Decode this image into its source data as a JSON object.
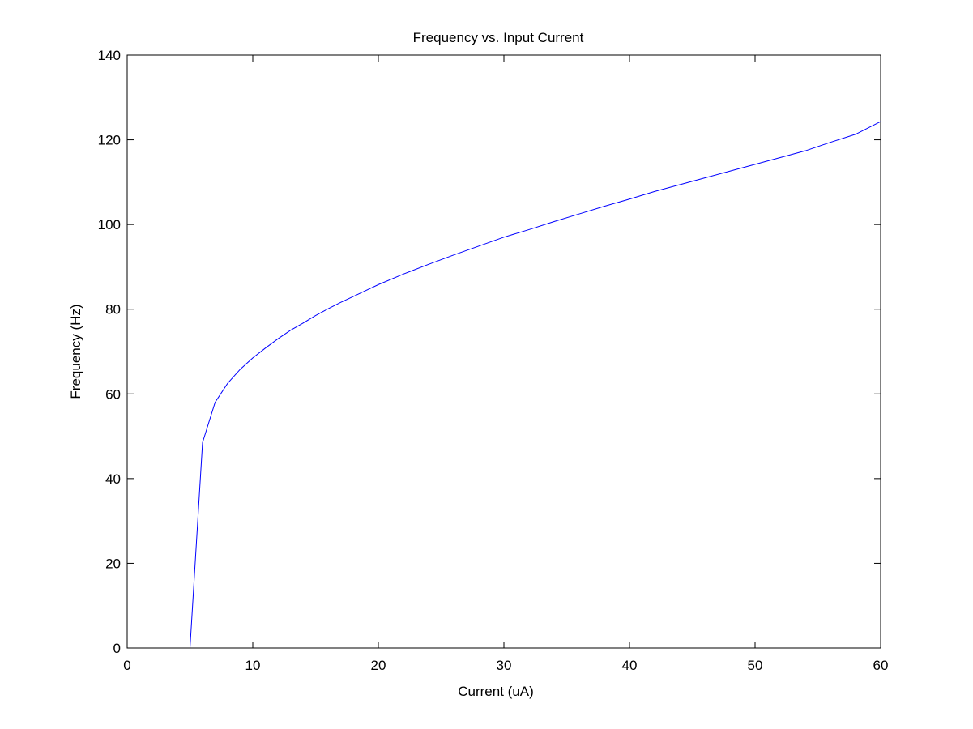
{
  "chart_data": {
    "type": "line",
    "title": "Frequency vs. Input Current",
    "xlabel": "Current (uA)",
    "ylabel": "Frequency (Hz)",
    "xlim": [
      0,
      60
    ],
    "ylim": [
      0,
      140
    ],
    "xticks": [
      0,
      10,
      20,
      30,
      40,
      50,
      60
    ],
    "yticks": [
      0,
      20,
      40,
      60,
      80,
      100,
      120,
      140
    ],
    "grid": false,
    "series": [
      {
        "color": "#0000ff",
        "x": [
          5,
          6,
          7,
          8,
          9,
          10,
          11,
          12,
          13,
          14,
          15,
          16,
          17,
          18,
          19,
          20,
          22,
          24,
          26,
          28,
          30,
          32,
          34,
          36,
          38,
          40,
          42,
          44,
          46,
          48,
          50,
          52,
          54,
          56,
          58,
          60
        ],
        "y": [
          0,
          48.5,
          58,
          62.5,
          65.8,
          68.5,
          70.8,
          73,
          75,
          76.7,
          78.5,
          80.1,
          81.6,
          83,
          84.4,
          85.8,
          88.3,
          90.6,
          92.8,
          94.9,
          97,
          98.8,
          100.7,
          102.5,
          104.3,
          106,
          107.8,
          109.4,
          111,
          112.6,
          114.2,
          115.8,
          117.4,
          119.4,
          121.3,
          124.3
        ]
      }
    ]
  }
}
